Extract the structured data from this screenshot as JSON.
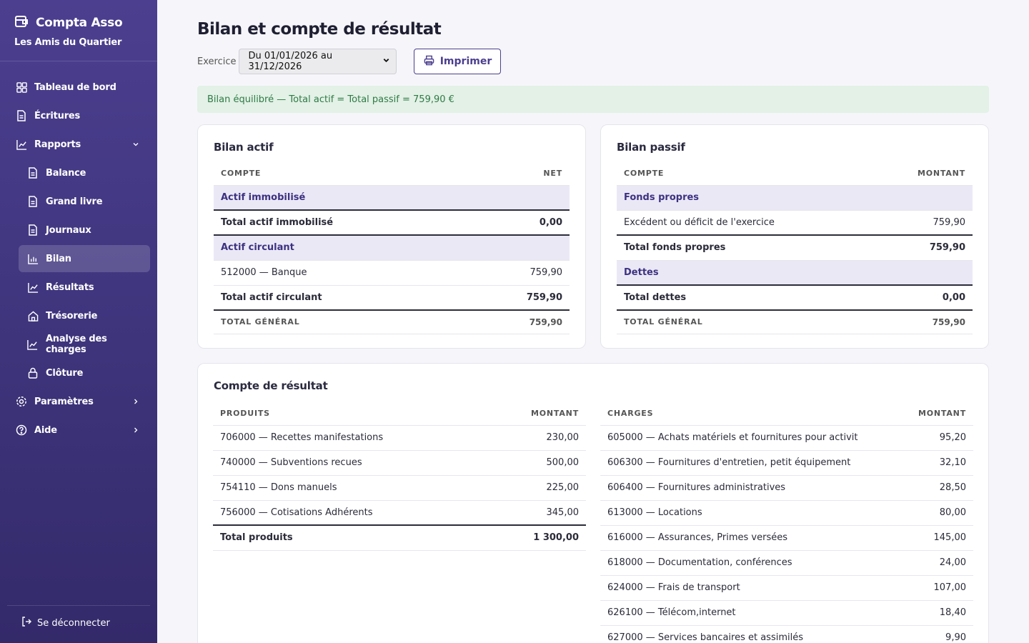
{
  "app": {
    "title": "Compta Asso",
    "subtitle": "Les Amis du Quartier"
  },
  "sidebar": {
    "items": [
      {
        "label": "Tableau de bord",
        "icon": "dashboard-icon"
      },
      {
        "label": "Écritures",
        "icon": "document-icon"
      },
      {
        "label": "Rapports",
        "icon": "chart-line-icon",
        "expanded": true
      },
      {
        "label": "Balance",
        "icon": "document-icon"
      },
      {
        "label": "Grand livre",
        "icon": "document-icon"
      },
      {
        "label": "Journaux",
        "icon": "document-icon"
      },
      {
        "label": "Bilan",
        "icon": "bar-chart-icon",
        "active": true
      },
      {
        "label": "Résultats",
        "icon": "chart-line-icon"
      },
      {
        "label": "Trésorerie",
        "icon": "home-icon"
      },
      {
        "label": "Analyse des charges",
        "icon": "chart-line-icon"
      },
      {
        "label": "Clôture",
        "icon": "lock-icon"
      },
      {
        "label": "Paramètres",
        "icon": "gear-icon"
      },
      {
        "label": "Aide",
        "icon": "help-icon"
      }
    ],
    "logout_label": "Se déconnecter"
  },
  "page": {
    "title": "Bilan et compte de résultat",
    "exercice_label": "Exercice",
    "exercice_value": "Du 01/01/2026 au 31/12/2026",
    "print_label": "Imprimer",
    "alert": "Bilan équilibré — Total actif = Total passif = 759,90 €"
  },
  "colors": {
    "sidebar": "#40367f",
    "accent": "#4b3f8f",
    "success_bg": "#e3f1e6",
    "success_text": "#2f7a46"
  },
  "actif": {
    "title": "Bilan actif",
    "col_account": "Compte",
    "col_amount": "Net",
    "g1": "Actif immobilisé",
    "t1_label": "Total actif immobilisé",
    "t1_value": "0,00",
    "g2": "Actif circulant",
    "r1_label": "512000 — Banque",
    "r1_value": "759,90",
    "t2_label": "Total actif circulant",
    "t2_value": "759,90",
    "grand_label": "Total général",
    "grand_value": "759,90"
  },
  "passif": {
    "title": "Bilan passif",
    "col_account": "Compte",
    "col_amount": "Montant",
    "g1": "Fonds propres",
    "r1_label": "Excédent ou déficit de l'exercice",
    "r1_value": "759,90",
    "t1_label": "Total fonds propres",
    "t1_value": "759,90",
    "g2": "Dettes",
    "t2_label": "Total dettes",
    "t2_value": "0,00",
    "grand_label": "Total général",
    "grand_value": "759,90"
  },
  "resultat": {
    "title": "Compte de résultat",
    "produits": {
      "col_account": "Produits",
      "col_amount": "Montant",
      "rows": [
        {
          "label": "706000 — Recettes manifestations",
          "value": "230,00"
        },
        {
          "label": "740000 — Subventions recues",
          "value": "500,00"
        },
        {
          "label": "754110 — Dons manuels",
          "value": "225,00"
        },
        {
          "label": "756000 — Cotisations Adhérents",
          "value": "345,00"
        }
      ],
      "total_label": "Total produits",
      "total_value": "1 300,00"
    },
    "charges": {
      "col_account": "Charges",
      "col_amount": "Montant",
      "rows": [
        {
          "label": "605000 — Achats matériels et fournitures pour activit",
          "value": "95,20"
        },
        {
          "label": "606300 — Fournitures d'entretien, petit équipement",
          "value": "32,10"
        },
        {
          "label": "606400 — Fournitures administratives",
          "value": "28,50"
        },
        {
          "label": "613000 — Locations",
          "value": "80,00"
        },
        {
          "label": "616000 — Assurances, Primes versées",
          "value": "145,00"
        },
        {
          "label": "618000 — Documentation, conférences",
          "value": "24,00"
        },
        {
          "label": "624000 — Frais de transport",
          "value": "107,00"
        },
        {
          "label": "626100 — Télécom,internet",
          "value": "18,40"
        },
        {
          "label": "627000 — Services bancaires et assimilés",
          "value": "9,90"
        }
      ]
    }
  }
}
